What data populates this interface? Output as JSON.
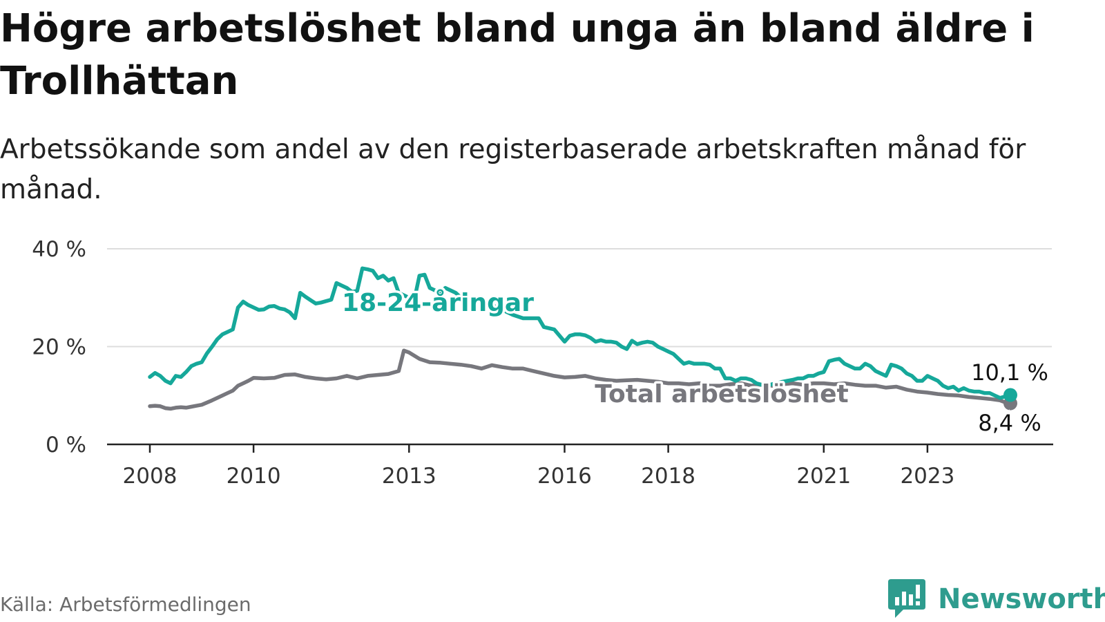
{
  "title": "Högre arbetslöshet bland unga än bland äldre i Trollhättan",
  "subtitle": "Arbetssökande som andel av den registerbaserade arbetskraften månad för månad.",
  "source": "Källa: Arbetsförmedlingen",
  "brand": {
    "name": "Newsworthy",
    "icon": "newsworthy-logo-icon",
    "color": "#2e9c8e"
  },
  "colors": {
    "youth": "#16a89a",
    "total": "#77777d",
    "grid": "#dddddd",
    "axis": "#222222"
  },
  "chart_data": {
    "type": "line",
    "title": "Högre arbetslöshet bland unga än bland äldre i Trollhättan",
    "xlabel": "",
    "ylabel": "",
    "ylim": [
      0,
      40
    ],
    "xlim": [
      2008,
      2024.6
    ],
    "y_ticks": [
      0,
      20,
      40
    ],
    "y_tick_labels": [
      "0 %",
      "20 %",
      "40 %"
    ],
    "x_ticks": [
      2008,
      2010,
      2013,
      2016,
      2018,
      2021,
      2023
    ],
    "x_tick_labels": [
      "2008",
      "2010",
      "2013",
      "2016",
      "2018",
      "2021",
      "2023"
    ],
    "grid": true,
    "series": [
      {
        "name": "18-24-åringar",
        "end_label": "10,1 %",
        "points": [
          [
            2008.0,
            13.8
          ],
          [
            2008.1,
            14.6
          ],
          [
            2008.2,
            14.0
          ],
          [
            2008.3,
            13.0
          ],
          [
            2008.4,
            12.5
          ],
          [
            2008.5,
            14.0
          ],
          [
            2008.6,
            13.8
          ],
          [
            2008.7,
            14.8
          ],
          [
            2008.8,
            16.0
          ],
          [
            2008.9,
            16.5
          ],
          [
            2009.0,
            16.8
          ],
          [
            2009.1,
            18.6
          ],
          [
            2009.2,
            20.0
          ],
          [
            2009.3,
            21.5
          ],
          [
            2009.4,
            22.5
          ],
          [
            2009.5,
            23.0
          ],
          [
            2009.6,
            23.5
          ],
          [
            2009.7,
            28.0
          ],
          [
            2009.8,
            29.2
          ],
          [
            2009.9,
            28.5
          ],
          [
            2010.0,
            28.0
          ],
          [
            2010.1,
            27.5
          ],
          [
            2010.2,
            27.6
          ],
          [
            2010.3,
            28.2
          ],
          [
            2010.4,
            28.3
          ],
          [
            2010.5,
            27.8
          ],
          [
            2010.6,
            27.6
          ],
          [
            2010.7,
            27.0
          ],
          [
            2010.8,
            25.8
          ],
          [
            2010.9,
            31.0
          ],
          [
            2011.0,
            30.2
          ],
          [
            2011.1,
            29.5
          ],
          [
            2011.2,
            28.8
          ],
          [
            2011.3,
            29.0
          ],
          [
            2011.4,
            29.3
          ],
          [
            2011.5,
            29.6
          ],
          [
            2011.6,
            33.0
          ],
          [
            2011.7,
            32.5
          ],
          [
            2011.8,
            32.0
          ],
          [
            2011.9,
            31.2
          ],
          [
            2012.0,
            31.4
          ],
          [
            2012.1,
            36.0
          ],
          [
            2012.2,
            35.8
          ],
          [
            2012.3,
            35.5
          ],
          [
            2012.4,
            34.0
          ],
          [
            2012.5,
            34.5
          ],
          [
            2012.6,
            33.5
          ],
          [
            2012.7,
            34.0
          ],
          [
            2012.8,
            31.0
          ],
          [
            2012.9,
            30.5
          ],
          [
            2013.0,
            30.0
          ],
          [
            2013.1,
            29.5
          ],
          [
            2013.2,
            34.5
          ],
          [
            2013.3,
            34.7
          ],
          [
            2013.4,
            32.0
          ],
          [
            2013.5,
            31.5
          ],
          [
            2013.6,
            31.0
          ],
          [
            2013.7,
            32.0
          ],
          [
            2013.8,
            31.5
          ],
          [
            2013.9,
            31.0
          ],
          [
            2014.0,
            30.0
          ],
          [
            2014.2,
            29.5
          ],
          [
            2014.4,
            29.0
          ],
          [
            2014.6,
            28.5
          ],
          [
            2014.8,
            27.5
          ],
          [
            2015.0,
            26.5
          ],
          [
            2015.2,
            25.8
          ],
          [
            2015.4,
            25.8
          ],
          [
            2015.5,
            25.8
          ],
          [
            2015.6,
            24.0
          ],
          [
            2015.8,
            23.5
          ],
          [
            2016.0,
            21.0
          ],
          [
            2016.1,
            22.2
          ],
          [
            2016.2,
            22.5
          ],
          [
            2016.3,
            22.5
          ],
          [
            2016.4,
            22.3
          ],
          [
            2016.5,
            21.8
          ],
          [
            2016.6,
            21.0
          ],
          [
            2016.7,
            21.3
          ],
          [
            2016.8,
            21.0
          ],
          [
            2016.9,
            21.0
          ],
          [
            2017.0,
            20.8
          ],
          [
            2017.1,
            20.0
          ],
          [
            2017.2,
            19.5
          ],
          [
            2017.3,
            21.2
          ],
          [
            2017.4,
            20.5
          ],
          [
            2017.5,
            20.8
          ],
          [
            2017.6,
            21.0
          ],
          [
            2017.7,
            20.8
          ],
          [
            2017.8,
            20.0
          ],
          [
            2017.9,
            19.5
          ],
          [
            2018.0,
            19.0
          ],
          [
            2018.1,
            18.5
          ],
          [
            2018.2,
            17.5
          ],
          [
            2018.3,
            16.5
          ],
          [
            2018.4,
            16.8
          ],
          [
            2018.5,
            16.5
          ],
          [
            2018.6,
            16.5
          ],
          [
            2018.7,
            16.5
          ],
          [
            2018.8,
            16.3
          ],
          [
            2018.9,
            15.5
          ],
          [
            2019.0,
            15.5
          ],
          [
            2019.1,
            13.5
          ],
          [
            2019.2,
            13.5
          ],
          [
            2019.3,
            13.0
          ],
          [
            2019.4,
            13.5
          ],
          [
            2019.5,
            13.5
          ],
          [
            2019.6,
            13.2
          ],
          [
            2019.7,
            12.5
          ],
          [
            2019.8,
            12.2
          ],
          [
            2019.9,
            12.0
          ],
          [
            2020.0,
            12.3
          ],
          [
            2020.1,
            12.5
          ],
          [
            2020.2,
            12.8
          ],
          [
            2020.3,
            13.0
          ],
          [
            2020.4,
            13.2
          ],
          [
            2020.5,
            13.5
          ],
          [
            2020.6,
            13.5
          ],
          [
            2020.7,
            14.0
          ],
          [
            2020.8,
            14.0
          ],
          [
            2020.9,
            14.5
          ],
          [
            2021.0,
            14.8
          ],
          [
            2021.1,
            17.0
          ],
          [
            2021.2,
            17.3
          ],
          [
            2021.3,
            17.5
          ],
          [
            2021.4,
            16.5
          ],
          [
            2021.5,
            16.0
          ],
          [
            2021.6,
            15.5
          ],
          [
            2021.7,
            15.5
          ],
          [
            2021.8,
            16.5
          ],
          [
            2021.9,
            16.0
          ],
          [
            2022.0,
            15.0
          ],
          [
            2022.1,
            14.5
          ],
          [
            2022.2,
            14.0
          ],
          [
            2022.3,
            16.3
          ],
          [
            2022.4,
            16.0
          ],
          [
            2022.5,
            15.5
          ],
          [
            2022.6,
            14.5
          ],
          [
            2022.7,
            14.0
          ],
          [
            2022.8,
            13.0
          ],
          [
            2022.9,
            13.0
          ],
          [
            2023.0,
            14.0
          ],
          [
            2023.1,
            13.5
          ],
          [
            2023.2,
            13.0
          ],
          [
            2023.3,
            12.0
          ],
          [
            2023.4,
            11.5
          ],
          [
            2023.5,
            11.8
          ],
          [
            2023.6,
            11.0
          ],
          [
            2023.7,
            11.5
          ],
          [
            2023.8,
            11.0
          ],
          [
            2023.9,
            10.8
          ],
          [
            2024.0,
            10.8
          ],
          [
            2024.1,
            10.5
          ],
          [
            2024.2,
            10.5
          ],
          [
            2024.3,
            10.0
          ],
          [
            2024.4,
            9.5
          ],
          [
            2024.5,
            9.8
          ],
          [
            2024.6,
            10.1
          ]
        ]
      },
      {
        "name": "Total arbetslöshet",
        "end_label": "8,4 %",
        "points": [
          [
            2008.0,
            7.8
          ],
          [
            2008.1,
            7.9
          ],
          [
            2008.2,
            7.8
          ],
          [
            2008.3,
            7.4
          ],
          [
            2008.4,
            7.3
          ],
          [
            2008.5,
            7.5
          ],
          [
            2008.6,
            7.6
          ],
          [
            2008.7,
            7.5
          ],
          [
            2008.8,
            7.7
          ],
          [
            2008.9,
            7.9
          ],
          [
            2009.0,
            8.1
          ],
          [
            2009.2,
            9.0
          ],
          [
            2009.4,
            10.0
          ],
          [
            2009.5,
            10.5
          ],
          [
            2009.6,
            11.0
          ],
          [
            2009.7,
            12.0
          ],
          [
            2009.8,
            12.5
          ],
          [
            2009.9,
            13.0
          ],
          [
            2010.0,
            13.6
          ],
          [
            2010.2,
            13.5
          ],
          [
            2010.4,
            13.6
          ],
          [
            2010.6,
            14.2
          ],
          [
            2010.8,
            14.3
          ],
          [
            2011.0,
            13.8
          ],
          [
            2011.2,
            13.5
          ],
          [
            2011.4,
            13.3
          ],
          [
            2011.6,
            13.5
          ],
          [
            2011.8,
            14.0
          ],
          [
            2012.0,
            13.5
          ],
          [
            2012.2,
            14.0
          ],
          [
            2012.4,
            14.2
          ],
          [
            2012.6,
            14.4
          ],
          [
            2012.8,
            15.0
          ],
          [
            2012.9,
            19.2
          ],
          [
            2013.0,
            18.8
          ],
          [
            2013.2,
            17.5
          ],
          [
            2013.4,
            16.8
          ],
          [
            2013.6,
            16.7
          ],
          [
            2013.8,
            16.5
          ],
          [
            2014.0,
            16.3
          ],
          [
            2014.2,
            16.0
          ],
          [
            2014.4,
            15.5
          ],
          [
            2014.6,
            16.2
          ],
          [
            2014.8,
            15.8
          ],
          [
            2015.0,
            15.5
          ],
          [
            2015.2,
            15.5
          ],
          [
            2015.4,
            15.0
          ],
          [
            2015.6,
            14.5
          ],
          [
            2015.8,
            14.0
          ],
          [
            2016.0,
            13.7
          ],
          [
            2016.2,
            13.8
          ],
          [
            2016.4,
            14.0
          ],
          [
            2016.6,
            13.5
          ],
          [
            2016.8,
            13.2
          ],
          [
            2017.0,
            13.0
          ],
          [
            2017.2,
            13.1
          ],
          [
            2017.4,
            13.2
          ],
          [
            2017.6,
            13.0
          ],
          [
            2017.8,
            12.8
          ],
          [
            2018.0,
            12.5
          ],
          [
            2018.2,
            12.5
          ],
          [
            2018.4,
            12.3
          ],
          [
            2018.6,
            12.5
          ],
          [
            2018.8,
            12.0
          ],
          [
            2019.0,
            12.0
          ],
          [
            2019.2,
            12.3
          ],
          [
            2019.4,
            12.5
          ],
          [
            2019.6,
            12.0
          ],
          [
            2019.8,
            12.2
          ],
          [
            2020.0,
            12.0
          ],
          [
            2020.2,
            12.3
          ],
          [
            2020.4,
            12.5
          ],
          [
            2020.6,
            12.2
          ],
          [
            2020.8,
            12.5
          ],
          [
            2021.0,
            12.5
          ],
          [
            2021.2,
            12.3
          ],
          [
            2021.4,
            12.5
          ],
          [
            2021.6,
            12.2
          ],
          [
            2021.8,
            12.0
          ],
          [
            2022.0,
            12.0
          ],
          [
            2022.2,
            11.6
          ],
          [
            2022.4,
            11.8
          ],
          [
            2022.6,
            11.2
          ],
          [
            2022.8,
            10.8
          ],
          [
            2023.0,
            10.6
          ],
          [
            2023.2,
            10.3
          ],
          [
            2023.4,
            10.1
          ],
          [
            2023.6,
            10.0
          ],
          [
            2023.8,
            9.7
          ],
          [
            2024.0,
            9.5
          ],
          [
            2024.2,
            9.3
          ],
          [
            2024.4,
            9.0
          ],
          [
            2024.5,
            8.6
          ],
          [
            2024.6,
            8.4
          ]
        ]
      }
    ],
    "annotations": [
      {
        "text": "18-24-åringar",
        "series": "18-24-åringar"
      },
      {
        "text": "Total arbetslöshet",
        "series": "Total arbetslöshet"
      }
    ]
  }
}
